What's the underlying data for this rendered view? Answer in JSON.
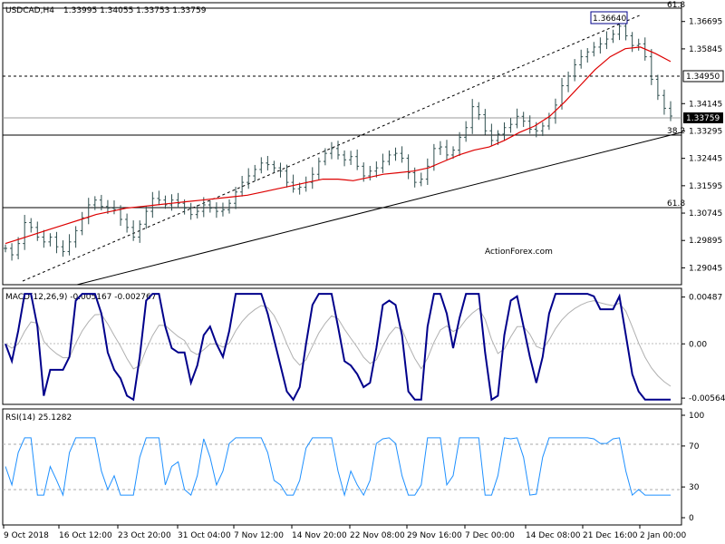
{
  "chart_data": {
    "type": "line",
    "symbol": "USDCAD,H4",
    "ohlc_readout": "1.33995 1.34055 1.33753 1.33759",
    "watermark": "ActionForex.com",
    "x_labels": [
      "9 Oct 2018",
      "16 Oct 12:00",
      "23 Oct 20:00",
      "31 Oct 04:00",
      "7 Nov 12:00",
      "14 Nov 20:00",
      "22 Nov 08:00",
      "29 Nov 16:00",
      "7 Dec 00:00",
      "14 Dec 08:00",
      "21 Dec 16:00",
      "2 Jan 00:00"
    ],
    "price": {
      "ylim": [
        1.2855,
        1.3725
      ],
      "y_ticks": [
        "1.36695",
        "1.35845",
        "1.34950",
        "1.34145",
        "1.33759",
        "1.33295",
        "1.32445",
        "1.31595",
        "1.30745",
        "1.29895",
        "1.29045"
      ],
      "bars": [
        1.2965,
        1.2945,
        1.298,
        1.3045,
        1.303,
        1.3,
        1.2985,
        1.3,
        1.297,
        1.2955,
        1.2985,
        1.302,
        1.306,
        1.31,
        1.3115,
        1.3095,
        1.309,
        1.3085,
        1.3055,
        1.303,
        1.3,
        1.304,
        1.308,
        1.312,
        1.3115,
        1.31,
        1.3115,
        1.3105,
        1.309,
        1.307,
        1.308,
        1.31,
        1.309,
        1.308,
        1.3085,
        1.3105,
        1.314,
        1.317,
        1.319,
        1.321,
        1.323,
        1.3225,
        1.3215,
        1.3205,
        1.317,
        1.315,
        1.3155,
        1.317,
        1.3195,
        1.3235,
        1.326,
        1.3275,
        1.3255,
        1.324,
        1.325,
        1.322,
        1.319,
        1.3205,
        1.3215,
        1.3235,
        1.3255,
        1.326,
        1.3245,
        1.32,
        1.317,
        1.318,
        1.322,
        1.3275,
        1.328,
        1.3255,
        1.327,
        1.331,
        1.334,
        1.3405,
        1.338,
        1.333,
        1.33,
        1.332,
        1.334,
        1.335,
        1.3375,
        1.336,
        1.3335,
        1.333,
        1.3345,
        1.337,
        1.341,
        1.347,
        1.35,
        1.3535,
        1.356,
        1.3575,
        1.359,
        1.36,
        1.3615,
        1.363,
        1.3655,
        1.3625,
        1.3595,
        1.36,
        1.356,
        1.349,
        1.344,
        1.34,
        1.33759
      ],
      "ma": [
        1.298,
        1.2995,
        1.301,
        1.3025,
        1.304,
        1.3055,
        1.307,
        1.308,
        1.309,
        1.3095,
        1.31,
        1.3105,
        1.311,
        1.3115,
        1.312,
        1.3125,
        1.313,
        1.314,
        1.315,
        1.316,
        1.317,
        1.318,
        1.318,
        1.3175,
        1.3185,
        1.3195,
        1.32,
        1.3205,
        1.3215,
        1.3235,
        1.3255,
        1.327,
        1.328,
        1.33,
        1.3325,
        1.3345,
        1.3375,
        1.342,
        1.347,
        1.352,
        1.356,
        1.3585,
        1.359,
        1.357,
        1.3545
      ],
      "level_label": "1.34950",
      "current_label": "1.33759",
      "high_label": "1.36640",
      "fib_labels": {
        "top": "61.8",
        "mid": "38.2",
        "low": "61.8"
      }
    },
    "macd": {
      "title": "MACD(12,26,9) -0.005167 -0.002767",
      "y_ticks": [
        "0.00487",
        "0.00",
        "-0.005645"
      ],
      "ylim": [
        -0.0062,
        0.0054
      ]
    },
    "rsi": {
      "title": "RSI(14) 25.1282",
      "y_ticks": [
        "100",
        "70",
        "30",
        "0"
      ],
      "ylim": [
        0,
        100
      ],
      "levels": [
        70,
        30
      ]
    }
  },
  "colors": {
    "price_bars": "#2f4f4f",
    "moving_average": "#dd0000",
    "macd_line": "#00008b",
    "signal_line": "#b0b0b0",
    "rsi_line": "#1e90ff",
    "trend_line": "#000000",
    "level_line": "#000000",
    "grid": "#bbbbbb",
    "watermark": "#c9c9c9"
  }
}
